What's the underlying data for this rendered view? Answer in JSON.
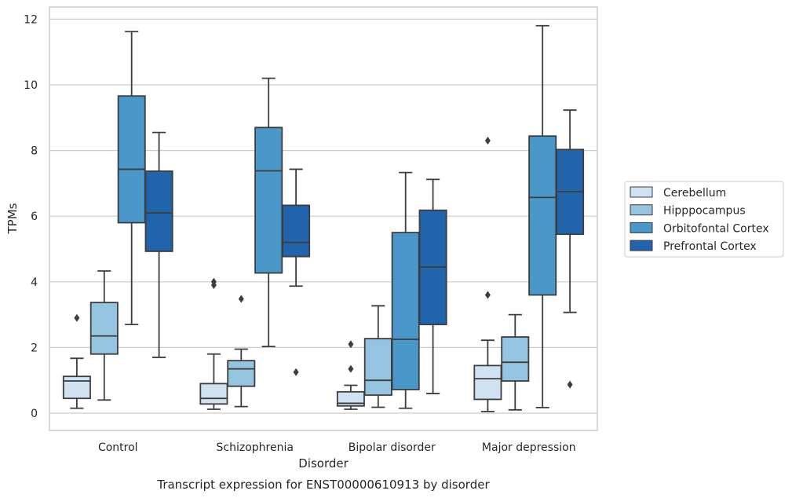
{
  "chart_data": {
    "type": "box",
    "title": "",
    "caption": "Transcript expression for ENST00000610913 by disorder",
    "xlabel": "Disorder",
    "ylabel": "TPMs",
    "ylim": [
      -0.5,
      12.4
    ],
    "yticks": [
      0,
      2,
      4,
      6,
      8,
      10,
      12
    ],
    "grid": "horizontal",
    "legend_position": "right",
    "categories": [
      "Control",
      "Schizophrenia",
      "Bipolar disorder",
      "Major depression"
    ],
    "series": [
      {
        "name": "Cerebellum",
        "color": "#d0e1f2",
        "boxes": [
          {
            "whislo": 0.15,
            "q1": 0.45,
            "med": 0.98,
            "q3": 1.12,
            "whishi": 1.67,
            "fliers": [
              2.9
            ]
          },
          {
            "whislo": 0.12,
            "q1": 0.28,
            "med": 0.45,
            "q3": 0.9,
            "whishi": 1.8,
            "fliers": [
              3.9,
              4.0
            ]
          },
          {
            "whislo": 0.12,
            "q1": 0.22,
            "med": 0.3,
            "q3": 0.65,
            "whishi": 0.85,
            "fliers": [
              1.35,
              2.1
            ]
          },
          {
            "whislo": 0.05,
            "q1": 0.42,
            "med": 1.05,
            "q3": 1.45,
            "whishi": 2.22,
            "fliers": [
              3.6,
              8.3
            ]
          }
        ]
      },
      {
        "name": "Hipppocampus",
        "color": "#94c4df",
        "boxes": [
          {
            "whislo": 0.4,
            "q1": 1.8,
            "med": 2.35,
            "q3": 3.37,
            "whishi": 4.33,
            "fliers": []
          },
          {
            "whislo": 0.2,
            "q1": 0.82,
            "med": 1.35,
            "q3": 1.6,
            "whishi": 1.95,
            "fliers": [
              3.48
            ]
          },
          {
            "whislo": 0.18,
            "q1": 0.55,
            "med": 1.0,
            "q3": 2.27,
            "whishi": 3.27,
            "fliers": []
          },
          {
            "whislo": 0.1,
            "q1": 0.98,
            "med": 1.55,
            "q3": 2.32,
            "whishi": 3.0,
            "fliers": []
          }
        ]
      },
      {
        "name": "Orbitofontal Cortex",
        "color": "#4a98c9",
        "boxes": [
          {
            "whislo": 2.7,
            "q1": 5.8,
            "med": 7.43,
            "q3": 9.66,
            "whishi": 11.62,
            "fliers": []
          },
          {
            "whislo": 2.03,
            "q1": 4.27,
            "med": 7.38,
            "q3": 8.7,
            "whishi": 10.2,
            "fliers": []
          },
          {
            "whislo": 0.15,
            "q1": 0.72,
            "med": 2.25,
            "q3": 5.5,
            "whishi": 7.33,
            "fliers": []
          },
          {
            "whislo": 0.17,
            "q1": 3.6,
            "med": 6.57,
            "q3": 8.44,
            "whishi": 11.8,
            "fliers": []
          }
        ]
      },
      {
        "name": "Prefrontal Cortex",
        "color": "#2164ab",
        "boxes": [
          {
            "whislo": 1.7,
            "q1": 4.93,
            "med": 6.1,
            "q3": 7.37,
            "whishi": 8.55,
            "fliers": []
          },
          {
            "whislo": 3.87,
            "q1": 4.77,
            "med": 5.2,
            "q3": 6.33,
            "whishi": 7.43,
            "fliers": [
              1.25
            ]
          },
          {
            "whislo": 0.6,
            "q1": 2.7,
            "med": 4.45,
            "q3": 6.18,
            "whishi": 7.12,
            "fliers": []
          },
          {
            "whislo": 3.07,
            "q1": 5.45,
            "med": 6.75,
            "q3": 8.03,
            "whishi": 9.23,
            "fliers": [
              0.87
            ]
          }
        ]
      }
    ]
  }
}
